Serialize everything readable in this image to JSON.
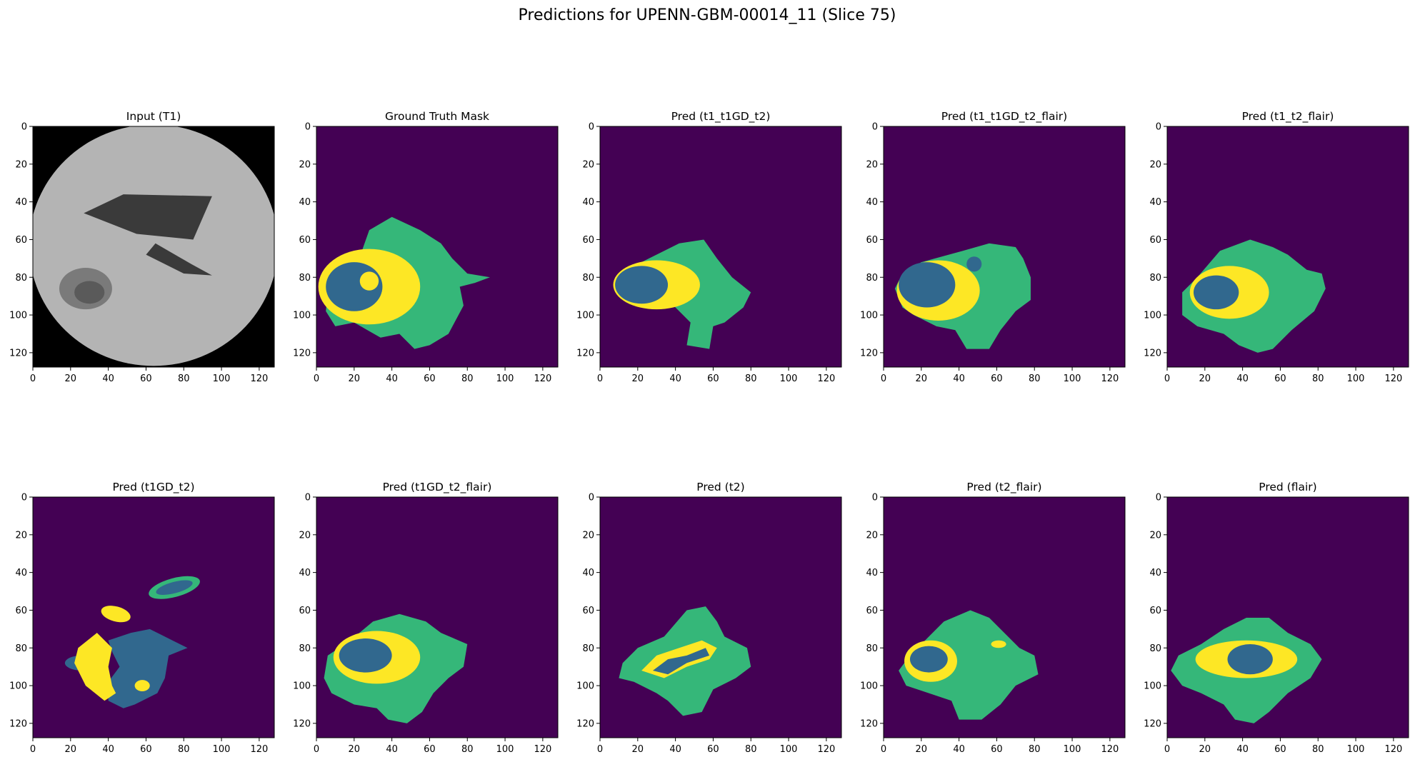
{
  "figure": {
    "title": "Predictions for UPENN-GBM-00014_11 (Slice 75)",
    "colors": {
      "background_class": "#440154",
      "edema_class": "#35b779",
      "necrotic_class": "#31688e",
      "enhancing_class": "#fde725",
      "t1_image_background": "#000000",
      "t1_brain": "#b4b4b4",
      "t1_ventricle": "#3a3a3a",
      "t1_lesion": "#7a7a7a"
    },
    "axis_ticks": {
      "x": [
        "0",
        "20",
        "40",
        "60",
        "80",
        "100",
        "120"
      ],
      "y": [
        "0",
        "20",
        "40",
        "60",
        "80",
        "100",
        "120"
      ]
    },
    "panels": [
      {
        "title": "Input (T1)",
        "kind": "t1"
      },
      {
        "title": "Ground Truth Mask",
        "kind": "mask"
      },
      {
        "title": "Pred (t1_t1GD_t2)",
        "kind": "mask"
      },
      {
        "title": "Pred (t1_t1GD_t2_flair)",
        "kind": "mask"
      },
      {
        "title": "Pred (t1_t2_flair)",
        "kind": "mask"
      },
      {
        "title": "Pred (t1GD_t2)",
        "kind": "mask"
      },
      {
        "title": "Pred (t1GD_t2_flair)",
        "kind": "mask"
      },
      {
        "title": "Pred (t2)",
        "kind": "mask"
      },
      {
        "title": "Pred (t2_flair)",
        "kind": "mask"
      },
      {
        "title": "Pred (flair)",
        "kind": "mask"
      }
    ]
  }
}
